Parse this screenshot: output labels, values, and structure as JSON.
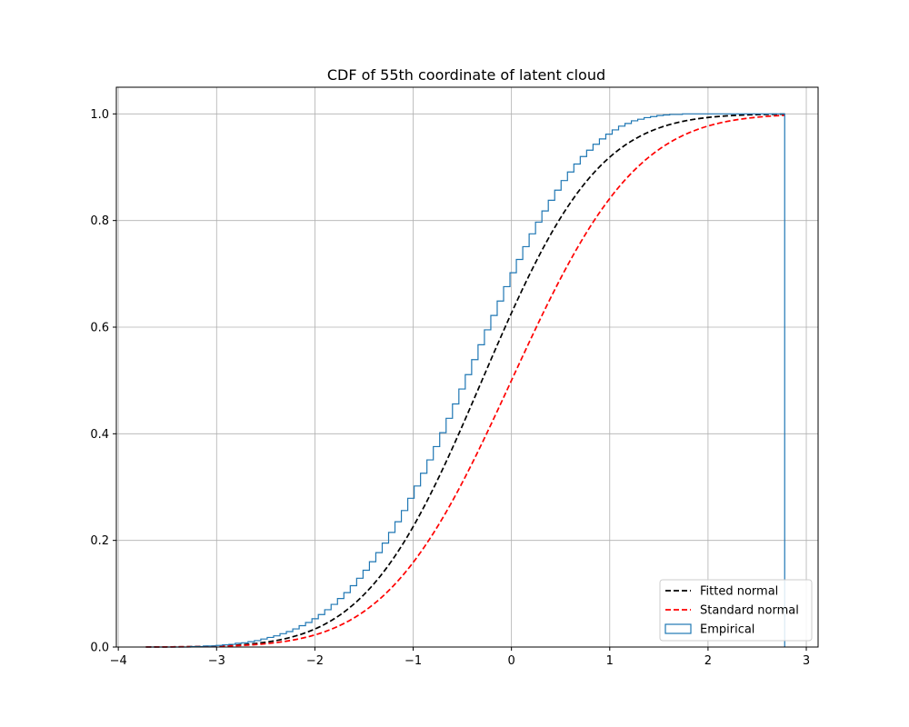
{
  "chart_data": {
    "type": "line",
    "title": "CDF of 55th coordinate of latent cloud",
    "xlabel": "",
    "ylabel": "",
    "xlim": [
      -4.02,
      3.12
    ],
    "ylim": [
      0,
      1.05
    ],
    "x_ticks": [
      -4,
      -3,
      -2,
      -1,
      0,
      1,
      2,
      3
    ],
    "y_ticks": [
      0.0,
      0.2,
      0.4,
      0.6,
      0.8,
      1.0
    ],
    "x_tick_labels": [
      "−4",
      "−3",
      "−2",
      "−1",
      "0",
      "1",
      "2",
      "3"
    ],
    "y_tick_labels": [
      "0.0",
      "0.2",
      "0.4",
      "0.6",
      "0.8",
      "1.0"
    ],
    "grid": true,
    "legend_position": "lower right",
    "series": [
      {
        "name": "Fitted normal",
        "kind": "line",
        "style": "dashed",
        "color": "#000000",
        "distribution": "normal",
        "mean": -0.3,
        "std": 0.93,
        "x_range": [
          -3.72,
          2.78
        ]
      },
      {
        "name": "Standard normal",
        "kind": "line",
        "style": "dashed",
        "color": "#ff0000",
        "distribution": "normal",
        "mean": 0.0,
        "std": 1.0,
        "x_range": [
          -3.72,
          2.78
        ]
      },
      {
        "name": "Empirical",
        "kind": "step",
        "color": "#1f77b4",
        "bin_edges": [
          -3.72,
          -3.655,
          -3.59,
          -3.525,
          -3.46,
          -3.395,
          -3.33,
          -3.265,
          -3.2,
          -3.135,
          -3.07,
          -3.005,
          -2.94,
          -2.875,
          -2.81,
          -2.745,
          -2.68,
          -2.615,
          -2.55,
          -2.485,
          -2.42,
          -2.355,
          -2.29,
          -2.225,
          -2.16,
          -2.095,
          -2.03,
          -1.965,
          -1.9,
          -1.835,
          -1.77,
          -1.705,
          -1.64,
          -1.575,
          -1.51,
          -1.445,
          -1.38,
          -1.315,
          -1.25,
          -1.185,
          -1.12,
          -1.055,
          -0.99,
          -0.925,
          -0.86,
          -0.795,
          -0.73,
          -0.665,
          -0.6,
          -0.535,
          -0.47,
          -0.405,
          -0.34,
          -0.275,
          -0.21,
          -0.145,
          -0.08,
          -0.015,
          0.05,
          0.115,
          0.18,
          0.245,
          0.31,
          0.375,
          0.44,
          0.505,
          0.57,
          0.635,
          0.7,
          0.765,
          0.83,
          0.895,
          0.96,
          1.025,
          1.09,
          1.155,
          1.22,
          1.285,
          1.35,
          1.415,
          1.48,
          1.545,
          1.61,
          1.675,
          1.74,
          1.805,
          1.87,
          1.935,
          2.0,
          2.065,
          2.13,
          2.195,
          2.26,
          2.325,
          2.39,
          2.455,
          2.52,
          2.585,
          2.65,
          2.715,
          2.78
        ],
        "cdf_values": [
          0.0,
          0.0,
          0.0,
          0.0,
          0.0,
          0.0,
          0.0,
          0.001,
          0.001,
          0.002,
          0.002,
          0.003,
          0.004,
          0.005,
          0.007,
          0.008,
          0.01,
          0.012,
          0.015,
          0.018,
          0.021,
          0.025,
          0.029,
          0.034,
          0.04,
          0.046,
          0.053,
          0.061,
          0.07,
          0.08,
          0.091,
          0.102,
          0.115,
          0.129,
          0.144,
          0.16,
          0.177,
          0.195,
          0.215,
          0.235,
          0.256,
          0.279,
          0.302,
          0.326,
          0.351,
          0.376,
          0.402,
          0.429,
          0.456,
          0.484,
          0.511,
          0.539,
          0.567,
          0.595,
          0.622,
          0.649,
          0.676,
          0.702,
          0.727,
          0.751,
          0.775,
          0.797,
          0.818,
          0.838,
          0.857,
          0.875,
          0.891,
          0.906,
          0.92,
          0.932,
          0.943,
          0.953,
          0.962,
          0.97,
          0.977,
          0.982,
          0.987,
          0.99,
          0.993,
          0.995,
          0.997,
          0.998,
          0.999,
          0.999,
          1.0,
          1.0,
          1.0,
          1.0,
          1.0,
          1.0,
          1.0,
          1.0,
          1.0,
          1.0,
          1.0,
          1.0,
          1.0,
          1.0,
          1.0,
          1.0
        ]
      }
    ]
  }
}
